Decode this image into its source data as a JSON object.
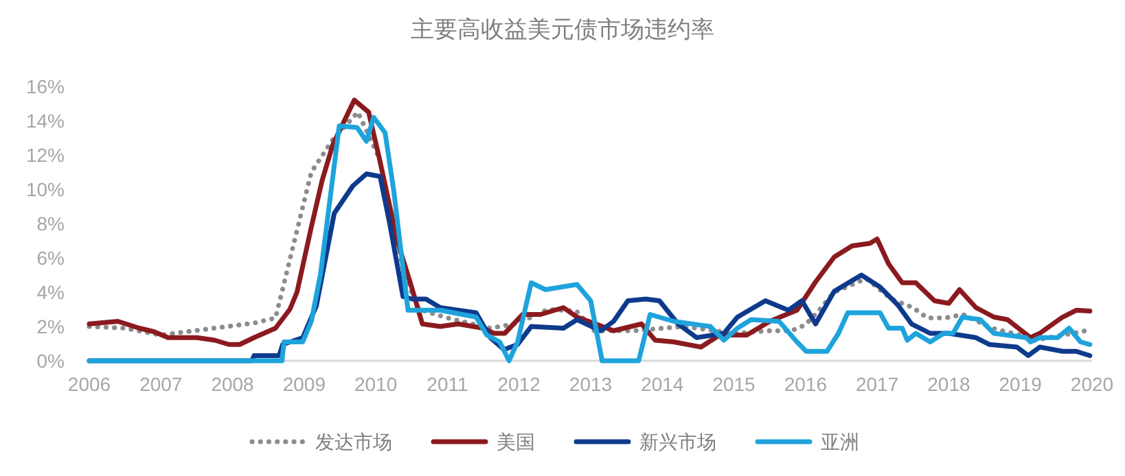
{
  "chart_data": {
    "type": "line",
    "title": "主要高收益美元债市场违约率",
    "xlim": [
      2006,
      2020
    ],
    "ylim": [
      0,
      16
    ],
    "xticks": [
      2006,
      2007,
      2008,
      2009,
      2010,
      2011,
      2012,
      2013,
      2014,
      2015,
      2016,
      2017,
      2018,
      2019,
      2020
    ],
    "yticks": [
      {
        "value": 0,
        "label": "0%"
      },
      {
        "value": 2,
        "label": "2%"
      },
      {
        "value": 4,
        "label": "4%"
      },
      {
        "value": 6,
        "label": "6%"
      },
      {
        "value": 8,
        "label": "8%"
      },
      {
        "value": 10,
        "label": "10%"
      },
      {
        "value": 12,
        "label": "12%"
      },
      {
        "value": 14,
        "label": "14%"
      },
      {
        "value": 16,
        "label": "16%"
      }
    ],
    "grid": false,
    "legend": "bottom",
    "series": [
      {
        "name": "发达市场",
        "color": "#8c8c8c",
        "line_style": "dotted",
        "x": [
          2006.0,
          2006.5,
          2007.0,
          2008.3,
          2008.6,
          2009.1,
          2009.4,
          2009.75,
          2010.05,
          2010.4,
          2010.6,
          2011.0,
          2011.6,
          2012.0,
          2012.4,
          2012.8,
          2013.05,
          2013.6,
          2014.3,
          2015.0,
          2015.5,
          2015.8,
          2016.0,
          2016.2,
          2016.4,
          2016.85,
          2017.2,
          2017.5,
          2017.7,
          2017.95,
          2018.2,
          2018.6,
          2019.0,
          2019.2,
          2019.6,
          2019.97
        ],
        "values": [
          2.0,
          1.9,
          1.5,
          2.2,
          2.5,
          11.0,
          12.9,
          14.5,
          11.8,
          5.0,
          3.0,
          2.5,
          1.9,
          2.2,
          3.0,
          2.9,
          1.75,
          1.75,
          2.0,
          1.6,
          1.75,
          1.75,
          2.1,
          3.0,
          4.0,
          4.8,
          3.6,
          3.1,
          2.5,
          2.5,
          2.7,
          1.9,
          1.5,
          1.2,
          1.5,
          1.8
        ]
      },
      {
        "name": "美国",
        "color": "#8b1a1f",
        "line_style": "solid",
        "x": [
          2006.0,
          2006.4,
          2006.7,
          2006.9,
          2007.1,
          2007.5,
          2007.75,
          2007.95,
          2008.1,
          2008.3,
          2008.6,
          2008.8,
          2008.9,
          2009.1,
          2009.25,
          2009.4,
          2009.7,
          2009.9,
          2010.05,
          2010.3,
          2010.5,
          2010.65,
          2010.9,
          2011.15,
          2011.5,
          2011.65,
          2011.8,
          2012.05,
          2012.3,
          2012.62,
          2012.81,
          2013.07,
          2013.32,
          2013.71,
          2013.9,
          2014.16,
          2014.54,
          2014.8,
          2015.18,
          2015.5,
          2015.88,
          2016.14,
          2016.4,
          2016.65,
          2016.9,
          2017.0,
          2017.16,
          2017.35,
          2017.54,
          2017.8,
          2018.0,
          2018.15,
          2018.38,
          2018.63,
          2018.82,
          2019.14,
          2019.27,
          2019.59,
          2019.78,
          2019.97
        ],
        "values": [
          2.15,
          2.3,
          1.9,
          1.7,
          1.35,
          1.35,
          1.2,
          0.95,
          0.95,
          1.35,
          1.9,
          3.0,
          4.0,
          7.8,
          10.5,
          12.6,
          15.2,
          14.5,
          11.8,
          7.0,
          4.3,
          2.15,
          2.0,
          2.15,
          1.9,
          1.6,
          1.6,
          2.7,
          2.7,
          3.1,
          2.55,
          2.15,
          1.75,
          2.15,
          1.2,
          1.1,
          0.8,
          1.5,
          1.5,
          2.3,
          2.95,
          4.6,
          6.05,
          6.7,
          6.85,
          7.1,
          5.65,
          4.55,
          4.55,
          3.5,
          3.35,
          4.15,
          3.1,
          2.55,
          2.4,
          1.35,
          1.6,
          2.55,
          2.95,
          2.9
        ]
      },
      {
        "name": "新兴市场",
        "color": "#0e3a8c",
        "line_style": "solid",
        "x": [
          2006.0,
          2008.27,
          2008.3,
          2008.65,
          2008.7,
          2008.98,
          2009.17,
          2009.42,
          2009.68,
          2009.87,
          2010.06,
          2010.19,
          2010.38,
          2010.51,
          2010.7,
          2010.9,
          2011.15,
          2011.4,
          2011.6,
          2011.79,
          2011.98,
          2012.17,
          2012.62,
          2012.81,
          2013.14,
          2013.32,
          2013.52,
          2013.77,
          2013.96,
          2014.22,
          2014.48,
          2014.86,
          2015.05,
          2015.44,
          2015.76,
          2015.95,
          2016.14,
          2016.4,
          2016.78,
          2017.04,
          2017.29,
          2017.48,
          2017.74,
          2018.0,
          2018.38,
          2018.57,
          2018.95,
          2019.11,
          2019.27,
          2019.59,
          2019.78,
          2019.97
        ],
        "values": [
          0,
          0,
          0.3,
          0.3,
          0.95,
          1.35,
          3.2,
          8.6,
          10.2,
          10.9,
          10.75,
          8.1,
          3.75,
          3.6,
          3.6,
          3.1,
          2.95,
          2.8,
          1.35,
          0.65,
          0.95,
          2.0,
          1.9,
          2.4,
          1.75,
          2.3,
          3.5,
          3.6,
          3.5,
          2.15,
          1.35,
          1.6,
          2.55,
          3.5,
          2.95,
          3.5,
          2.15,
          4.05,
          5.0,
          4.3,
          3.25,
          2.15,
          1.6,
          1.6,
          1.35,
          0.95,
          0.8,
          0.3,
          0.8,
          0.55,
          0.55,
          0.3
        ]
      },
      {
        "name": "亚洲",
        "color": "#1fa3dc",
        "line_style": "solid",
        "x": [
          2006.0,
          2008.69,
          2008.72,
          2008.98,
          2009.1,
          2009.23,
          2009.49,
          2009.74,
          2009.87,
          2009.97,
          2010.13,
          2010.25,
          2010.45,
          2010.9,
          2011.4,
          2011.55,
          2011.73,
          2011.86,
          2011.98,
          2012.17,
          2012.37,
          2012.81,
          2013.0,
          2013.16,
          2013.67,
          2013.83,
          2014.16,
          2014.67,
          2014.86,
          2015.05,
          2015.24,
          2015.63,
          2015.88,
          2016.01,
          2016.3,
          2016.46,
          2016.59,
          2017.04,
          2017.16,
          2017.35,
          2017.42,
          2017.54,
          2017.74,
          2017.93,
          2018.06,
          2018.19,
          2018.44,
          2018.63,
          2019.08,
          2019.14,
          2019.27,
          2019.52,
          2019.68,
          2019.84,
          2019.97
        ],
        "values": [
          0,
          0,
          1.1,
          1.1,
          2.3,
          5.1,
          13.7,
          13.6,
          12.8,
          14.2,
          13.3,
          9.95,
          2.95,
          2.95,
          2.55,
          1.5,
          1.1,
          0,
          1.1,
          4.55,
          4.15,
          4.45,
          3.5,
          0,
          0,
          2.7,
          2.3,
          2.0,
          1.2,
          1.9,
          2.4,
          2.3,
          1.1,
          0.55,
          0.55,
          1.6,
          2.8,
          2.8,
          1.9,
          1.9,
          1.2,
          1.6,
          1.1,
          1.6,
          1.6,
          2.55,
          2.4,
          1.6,
          1.35,
          1.1,
          1.35,
          1.35,
          1.9,
          1.1,
          0.95
        ]
      }
    ]
  }
}
